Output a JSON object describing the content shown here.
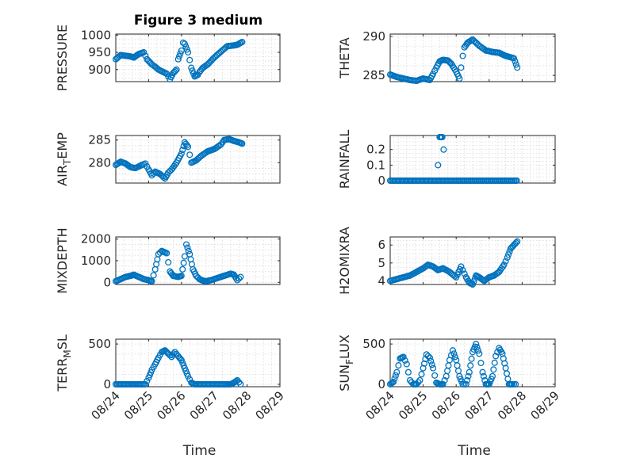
{
  "figure": {
    "title": "Figure 3 medium",
    "marker_color": "#0072BD"
  },
  "chart_data": [
    {
      "type": "scatter",
      "ylabel": "PRESSURE",
      "xlabel": "",
      "yticks": [
        900,
        950,
        1000
      ],
      "ylim": [
        865,
        1003
      ],
      "xticks": [
        "08/24",
        "08/25",
        "08/26",
        "08/27",
        "08/28",
        "08/29"
      ],
      "show_xticklabels": false,
      "grid": true,
      "series": [
        {
          "anchors_x": [
            0,
            0.15,
            0.3,
            0.45,
            0.55,
            0.7,
            0.85,
            0.95,
            1.1,
            1.2,
            1.3,
            1.4,
            1.55,
            1.65,
            1.75,
            1.85,
            1.9,
            2.0,
            2.05,
            2.1,
            2.2,
            2.3,
            2.4,
            2.5,
            2.55,
            2.65,
            2.8,
            3.0,
            3.2,
            3.4,
            3.6,
            3.7,
            3.85
          ],
          "anchors_y": [
            930,
            942,
            940,
            938,
            935,
            945,
            950,
            930,
            915,
            908,
            900,
            895,
            888,
            872,
            890,
            900,
            930,
            955,
            978,
            975,
            950,
            905,
            880,
            885,
            893,
            905,
            915,
            935,
            952,
            968,
            970,
            972,
            980
          ]
        }
      ]
    },
    {
      "type": "scatter",
      "ylabel": "THETA",
      "xlabel": "",
      "yticks": [
        285,
        290
      ],
      "ylim": [
        284.2,
        290.3
      ],
      "xticks": [
        "08/24",
        "08/25",
        "08/26",
        "08/27",
        "08/28",
        "08/29"
      ],
      "show_xticklabels": false,
      "grid": true,
      "series": [
        {
          "anchors_x": [
            0,
            0.2,
            0.4,
            0.6,
            0.8,
            1.0,
            1.2,
            1.3,
            1.4,
            1.5,
            1.6,
            1.75,
            1.85,
            2.0,
            2.1,
            2.15,
            2.2,
            2.25,
            2.35,
            2.5,
            2.7,
            2.9,
            3.1,
            3.3,
            3.5,
            3.75,
            3.85
          ],
          "anchors_y": [
            285.1,
            284.8,
            284.6,
            284.4,
            284.3,
            284.6,
            284.4,
            285.2,
            286.0,
            286.8,
            287.0,
            286.9,
            286.5,
            285.5,
            284.6,
            286.0,
            287.5,
            288.6,
            289.2,
            289.6,
            288.8,
            288.2,
            288.0,
            287.9,
            287.5,
            287.2,
            286.0
          ]
        }
      ]
    },
    {
      "type": "scatter",
      "ylabel": "AIR_TEMP",
      "ylabel_main": "AIR",
      "ylabel_sub": "T",
      "ylabel_rest": "EMP",
      "xlabel": "",
      "yticks": [
        280,
        285
      ],
      "ylim": [
        275.5,
        286.0
      ],
      "xticks": [
        "08/24",
        "08/25",
        "08/26",
        "08/27",
        "08/28",
        "08/29"
      ],
      "show_xticklabels": false,
      "grid": true,
      "series": [
        {
          "anchors_x": [
            0,
            0.15,
            0.3,
            0.45,
            0.6,
            0.8,
            0.9,
            1.0,
            1.1,
            1.2,
            1.35,
            1.5,
            1.6,
            1.7,
            1.85,
            2.0,
            2.1,
            2.2,
            2.3,
            2.45,
            2.6,
            2.8,
            3.0,
            3.2,
            3.3,
            3.45,
            3.6,
            3.75,
            3.85
          ],
          "anchors_y": [
            279.5,
            280.2,
            279.8,
            279.0,
            278.8,
            279.5,
            279.8,
            278.5,
            277.2,
            278.0,
            277.5,
            276.5,
            277.8,
            278.5,
            280.0,
            282.0,
            284.5,
            283.5,
            280.0,
            280.5,
            281.5,
            282.5,
            283.0,
            284.0,
            285.0,
            285.2,
            284.8,
            284.5,
            284.2
          ]
        }
      ]
    },
    {
      "type": "scatter",
      "ylabel": "RAINFALL",
      "xlabel": "",
      "yticks": [
        0,
        0.1,
        0.2
      ],
      "yticklabels": [
        "0",
        "0.1",
        "0.2"
      ],
      "ylim": [
        -0.015,
        0.29
      ],
      "xticks": [
        "08/24",
        "08/25",
        "08/26",
        "08/27",
        "08/28",
        "08/29"
      ],
      "show_xticklabels": false,
      "grid": true,
      "series": [
        {
          "baseline": 0,
          "baseline_x": [
            0,
            3.85
          ],
          "spikes": [
            [
              1.45,
              0.1
            ],
            [
              1.5,
              0.28
            ],
            [
              1.52,
              0.28
            ],
            [
              1.55,
              0.28
            ],
            [
              1.58,
              0.28
            ],
            [
              1.62,
              0.2
            ]
          ]
        }
      ]
    },
    {
      "type": "scatter",
      "ylabel": "MIXDEPTH",
      "xlabel": "",
      "yticks": [
        0,
        1000,
        2000
      ],
      "ylim": [
        -100,
        2100
      ],
      "xticks": [
        "08/24",
        "08/25",
        "08/26",
        "08/27",
        "08/28",
        "08/29"
      ],
      "show_xticklabels": false,
      "grid": true,
      "series": [
        {
          "anchors_x": [
            0,
            0.15,
            0.3,
            0.45,
            0.55,
            0.7,
            0.85,
            1.0,
            1.1,
            1.2,
            1.3,
            1.4,
            1.55,
            1.65,
            1.75,
            1.9,
            2.0,
            2.1,
            2.15,
            2.25,
            2.35,
            2.45,
            2.55,
            2.65,
            2.75,
            2.9,
            3.1,
            3.3,
            3.5,
            3.6,
            3.7,
            3.8
          ],
          "anchors_y": [
            50,
            150,
            250,
            300,
            350,
            250,
            150,
            100,
            50,
            600,
            1300,
            1450,
            1350,
            500,
            300,
            250,
            300,
            1200,
            1750,
            1300,
            600,
            300,
            150,
            80,
            50,
            100,
            200,
            300,
            400,
            350,
            100,
            250
          ]
        }
      ]
    },
    {
      "type": "scatter",
      "ylabel": "H2OMIXRA",
      "xlabel": "",
      "yticks": [
        4,
        5,
        6
      ],
      "ylim": [
        3.8,
        6.45
      ],
      "xticks": [
        "08/24",
        "08/25",
        "08/26",
        "08/27",
        "08/28",
        "08/29"
      ],
      "show_xticklabels": false,
      "grid": true,
      "series": [
        {
          "anchors_x": [
            0,
            0.2,
            0.4,
            0.6,
            0.8,
            1.0,
            1.15,
            1.3,
            1.45,
            1.6,
            1.8,
            2.0,
            2.15,
            2.2,
            2.3,
            2.4,
            2.5,
            2.6,
            2.7,
            2.85,
            3.0,
            3.15,
            3.3,
            3.45,
            3.55,
            3.65,
            3.75,
            3.85
          ],
          "anchors_y": [
            4.0,
            4.1,
            4.2,
            4.3,
            4.5,
            4.7,
            4.9,
            4.8,
            4.6,
            4.7,
            4.5,
            4.2,
            4.8,
            4.6,
            4.2,
            3.9,
            3.8,
            4.3,
            4.2,
            4.0,
            4.2,
            4.3,
            4.5,
            4.9,
            5.3,
            5.8,
            6.0,
            6.2
          ]
        }
      ]
    },
    {
      "type": "scatter",
      "ylabel": "TERR_MSL",
      "ylabel_main": "TERR",
      "ylabel_sub": "M",
      "ylabel_rest": "SL",
      "xlabel": "Time",
      "yticks": [
        0,
        500
      ],
      "ylim": [
        -30,
        560
      ],
      "xticks": [
        "08/24",
        "08/25",
        "08/26",
        "08/27",
        "08/28",
        "08/29"
      ],
      "show_xticklabels": true,
      "grid": true,
      "series": [
        {
          "anchors_x": [
            0,
            0.4,
            0.7,
            0.9,
            1.0,
            1.1,
            1.2,
            1.3,
            1.4,
            1.5,
            1.6,
            1.7,
            1.8,
            1.9,
            2.0,
            2.1,
            2.2,
            2.3,
            2.4,
            2.6,
            3.0,
            3.2,
            3.4,
            3.5,
            3.6,
            3.7,
            3.8
          ],
          "anchors_y": [
            0,
            0,
            0,
            0,
            80,
            180,
            250,
            330,
            400,
            420,
            380,
            340,
            400,
            350,
            300,
            200,
            100,
            20,
            0,
            0,
            0,
            0,
            0,
            0,
            20,
            50,
            0
          ]
        }
      ]
    },
    {
      "type": "scatter",
      "ylabel": "SUN_FLUX",
      "ylabel_main": "SUN",
      "ylabel_sub": "F",
      "ylabel_rest": "LUX",
      "xlabel": "Time",
      "yticks": [
        0,
        500
      ],
      "ylim": [
        -30,
        560
      ],
      "xticks": [
        "08/24",
        "08/25",
        "08/26",
        "08/27",
        "08/28",
        "08/29"
      ],
      "show_xticklabels": true,
      "grid": true,
      "series": [
        {
          "anchors_x": [
            0,
            0.1,
            0.2,
            0.3,
            0.4,
            0.5,
            0.6,
            0.7,
            0.8,
            0.9,
            1.0,
            1.1,
            1.2,
            1.3,
            1.4,
            1.5,
            1.6,
            1.7,
            1.8,
            1.9,
            2.0,
            2.1,
            2.2,
            2.3,
            2.4,
            2.5,
            2.6,
            2.7,
            2.8,
            2.9,
            3.0,
            3.1,
            3.2,
            3.3,
            3.4,
            3.5,
            3.6,
            3.7,
            3.8
          ],
          "anchors_y": [
            0,
            30,
            150,
            320,
            340,
            250,
            50,
            0,
            0,
            50,
            200,
            370,
            330,
            200,
            20,
            0,
            0,
            100,
            300,
            420,
            300,
            100,
            0,
            0,
            150,
            400,
            500,
            380,
            150,
            0,
            0,
            100,
            350,
            450,
            380,
            200,
            0,
            0,
            0
          ]
        }
      ]
    }
  ]
}
